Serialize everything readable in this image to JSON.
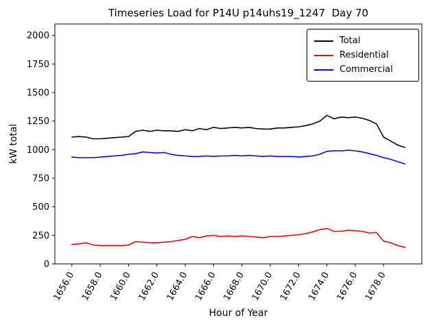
{
  "figure": {
    "title": "Timeseries Load for P14U p14uhs19_1247  Day 70"
  },
  "chart_data": {
    "type": "line",
    "title": "Timeseries Load for P14U p14uhs19_1247  Day 70",
    "xlabel": "Hour of Year",
    "ylabel": "kW total",
    "xlim": [
      1654.8,
      1680.7
    ],
    "ylim": [
      0,
      2100
    ],
    "grid": false,
    "legend_position": "upper right",
    "xticks": [
      1656,
      1658,
      1660,
      1662,
      1664,
      1666,
      1668,
      1670,
      1672,
      1674,
      1676,
      1678
    ],
    "xtick_labels": [
      "1656.0",
      "1658.0",
      "1660.0",
      "1662.0",
      "1664.0",
      "1666.0",
      "1668.0",
      "1670.0",
      "1672.0",
      "1674.0",
      "1676.0",
      "1678.0"
    ],
    "yticks": [
      0,
      250,
      500,
      750,
      1000,
      1250,
      1500,
      1750,
      2000
    ],
    "ytick_labels": [
      "0",
      "250",
      "500",
      "750",
      "1000",
      "1250",
      "1500",
      "1750",
      "2000"
    ],
    "x": [
      1656.0,
      1656.5,
      1657.0,
      1657.5,
      1658.0,
      1658.5,
      1659.0,
      1659.5,
      1660.0,
      1660.5,
      1661.0,
      1661.5,
      1662.0,
      1662.5,
      1663.0,
      1663.5,
      1664.0,
      1664.5,
      1665.0,
      1665.5,
      1666.0,
      1666.5,
      1667.0,
      1667.5,
      1668.0,
      1668.5,
      1669.0,
      1669.5,
      1670.0,
      1670.5,
      1671.0,
      1671.5,
      1672.0,
      1672.5,
      1673.0,
      1673.5,
      1674.0,
      1674.5,
      1675.0,
      1675.5,
      1676.0,
      1676.5,
      1677.0,
      1677.5,
      1678.0,
      1678.5,
      1679.0,
      1679.5
    ],
    "series": [
      {
        "name": "Total",
        "color": "#000000",
        "values": [
          1110,
          1115,
          1110,
          1095,
          1095,
          1100,
          1105,
          1110,
          1115,
          1160,
          1170,
          1160,
          1170,
          1165,
          1165,
          1160,
          1175,
          1165,
          1185,
          1175,
          1195,
          1185,
          1190,
          1195,
          1190,
          1195,
          1185,
          1180,
          1180,
          1190,
          1190,
          1195,
          1200,
          1210,
          1225,
          1250,
          1300,
          1270,
          1285,
          1280,
          1285,
          1275,
          1255,
          1225,
          1110,
          1075,
          1040,
          1020
        ]
      },
      {
        "name": "Residential",
        "color": "#ff0000",
        "values": [
          170,
          175,
          185,
          165,
          160,
          160,
          160,
          160,
          165,
          195,
          190,
          185,
          185,
          190,
          195,
          205,
          215,
          240,
          230,
          245,
          250,
          240,
          245,
          240,
          245,
          240,
          235,
          230,
          240,
          240,
          245,
          250,
          255,
          265,
          280,
          300,
          310,
          285,
          285,
          295,
          290,
          285,
          270,
          275,
          200,
          185,
          160,
          145
        ]
      },
      {
        "name": "Commercial",
        "color": "#0000ff",
        "values": [
          935,
          930,
          930,
          930,
          935,
          940,
          945,
          950,
          960,
          965,
          980,
          975,
          970,
          975,
          960,
          950,
          945,
          940,
          940,
          945,
          940,
          945,
          945,
          950,
          945,
          950,
          945,
          940,
          945,
          940,
          940,
          940,
          935,
          940,
          945,
          960,
          985,
          990,
          990,
          995,
          990,
          980,
          965,
          950,
          930,
          915,
          895,
          875
        ]
      }
    ]
  }
}
